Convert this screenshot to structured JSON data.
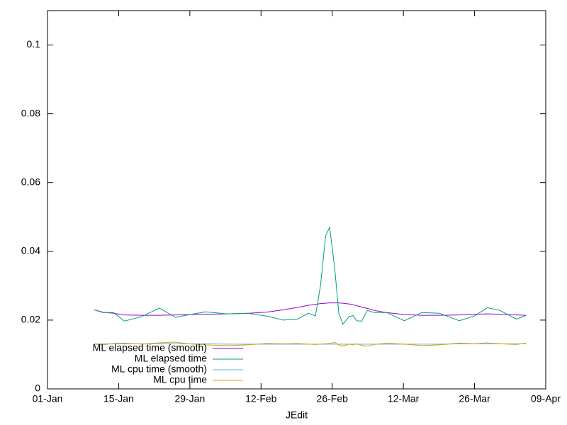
{
  "chart_data": {
    "type": "line",
    "x_label": "JEdit",
    "x": [
      9.2,
      10.9,
      13.0,
      15.1,
      18.5,
      22.0,
      25.2,
      27.6,
      31.1,
      35.3,
      39.5,
      43.0,
      46.4,
      49.2,
      51.3,
      52.7,
      53.7,
      54.7,
      55.5,
      56.5,
      57.3,
      58.1,
      59.3,
      60.1,
      60.8,
      61.8,
      62.9,
      64.3,
      66.7,
      70.2,
      73.6,
      77.1,
      81.0,
      84.1,
      86.5,
      89.0,
      92.2,
      94.1
    ],
    "series": [
      {
        "name": "ML elapsed time (smooth)",
        "color": "#9400d3",
        "values": [
          0.023,
          0.0223,
          0.022,
          0.0215,
          0.0214,
          0.0214,
          0.0215,
          0.0216,
          0.0217,
          0.0218,
          0.022,
          0.0223,
          0.023,
          0.0237,
          0.0243,
          0.0246,
          0.0248,
          0.0249,
          0.025,
          0.025,
          0.025,
          0.0249,
          0.0247,
          0.0245,
          0.0242,
          0.0238,
          0.0234,
          0.0228,
          0.0222,
          0.0216,
          0.0214,
          0.0214,
          0.0215,
          0.0217,
          0.0218,
          0.0217,
          0.0215,
          0.0214
        ]
      },
      {
        "name": "ML elapsed time",
        "color": "#009e73",
        "values": [
          0.023,
          0.0222,
          0.0222,
          0.0197,
          0.021,
          0.0235,
          0.0208,
          0.0215,
          0.0224,
          0.0218,
          0.022,
          0.0212,
          0.02,
          0.0203,
          0.022,
          0.0212,
          0.03,
          0.0445,
          0.047,
          0.035,
          0.022,
          0.0188,
          0.021,
          0.0213,
          0.0198,
          0.0197,
          0.0228,
          0.0222,
          0.0222,
          0.0198,
          0.0222,
          0.022,
          0.0198,
          0.0213,
          0.0236,
          0.0228,
          0.0203,
          0.0213
        ]
      },
      {
        "name": "ML cpu time (smooth)",
        "color": "#56b4e9",
        "values": [
          0.0131,
          0.0131,
          0.0131,
          0.0131,
          0.0131,
          0.0131,
          0.0131,
          0.0131,
          0.0131,
          0.013,
          0.013,
          0.013,
          0.013,
          0.013,
          0.013,
          0.013,
          0.013,
          0.013,
          0.013,
          0.013,
          0.013,
          0.013,
          0.013,
          0.013,
          0.013,
          0.013,
          0.013,
          0.013,
          0.013,
          0.013,
          0.013,
          0.013,
          0.0131,
          0.0131,
          0.0131,
          0.0131,
          0.0131,
          0.0131
        ]
      },
      {
        "name": "ML cpu time",
        "color": "#e69f00",
        "values": [
          0.013,
          0.0128,
          0.0132,
          0.0133,
          0.013,
          0.0134,
          0.0136,
          0.0131,
          0.0128,
          0.0126,
          0.0128,
          0.0132,
          0.0131,
          0.0132,
          0.013,
          0.0129,
          0.013,
          0.0131,
          0.0132,
          0.0135,
          0.0128,
          0.0125,
          0.013,
          0.0128,
          0.0131,
          0.0127,
          0.0124,
          0.0129,
          0.0133,
          0.013,
          0.0126,
          0.0128,
          0.0133,
          0.0131,
          0.0134,
          0.0131,
          0.0129,
          0.0133
        ]
      }
    ],
    "xlim": [
      0,
      98
    ],
    "xticks": [
      {
        "value": 0,
        "label": "01-Jan"
      },
      {
        "value": 14,
        "label": "15-Jan"
      },
      {
        "value": 28,
        "label": "29-Jan"
      },
      {
        "value": 42,
        "label": "12-Feb"
      },
      {
        "value": 56,
        "label": "26-Feb"
      },
      {
        "value": 70,
        "label": "12-Mar"
      },
      {
        "value": 84,
        "label": "26-Mar"
      },
      {
        "value": 98,
        "label": "09-Apr"
      }
    ],
    "ylim": [
      0,
      0.11
    ],
    "yticks": [
      0,
      0.02,
      0.04,
      0.06,
      0.08,
      0.1
    ],
    "legend": "bottom left",
    "grid": false
  }
}
